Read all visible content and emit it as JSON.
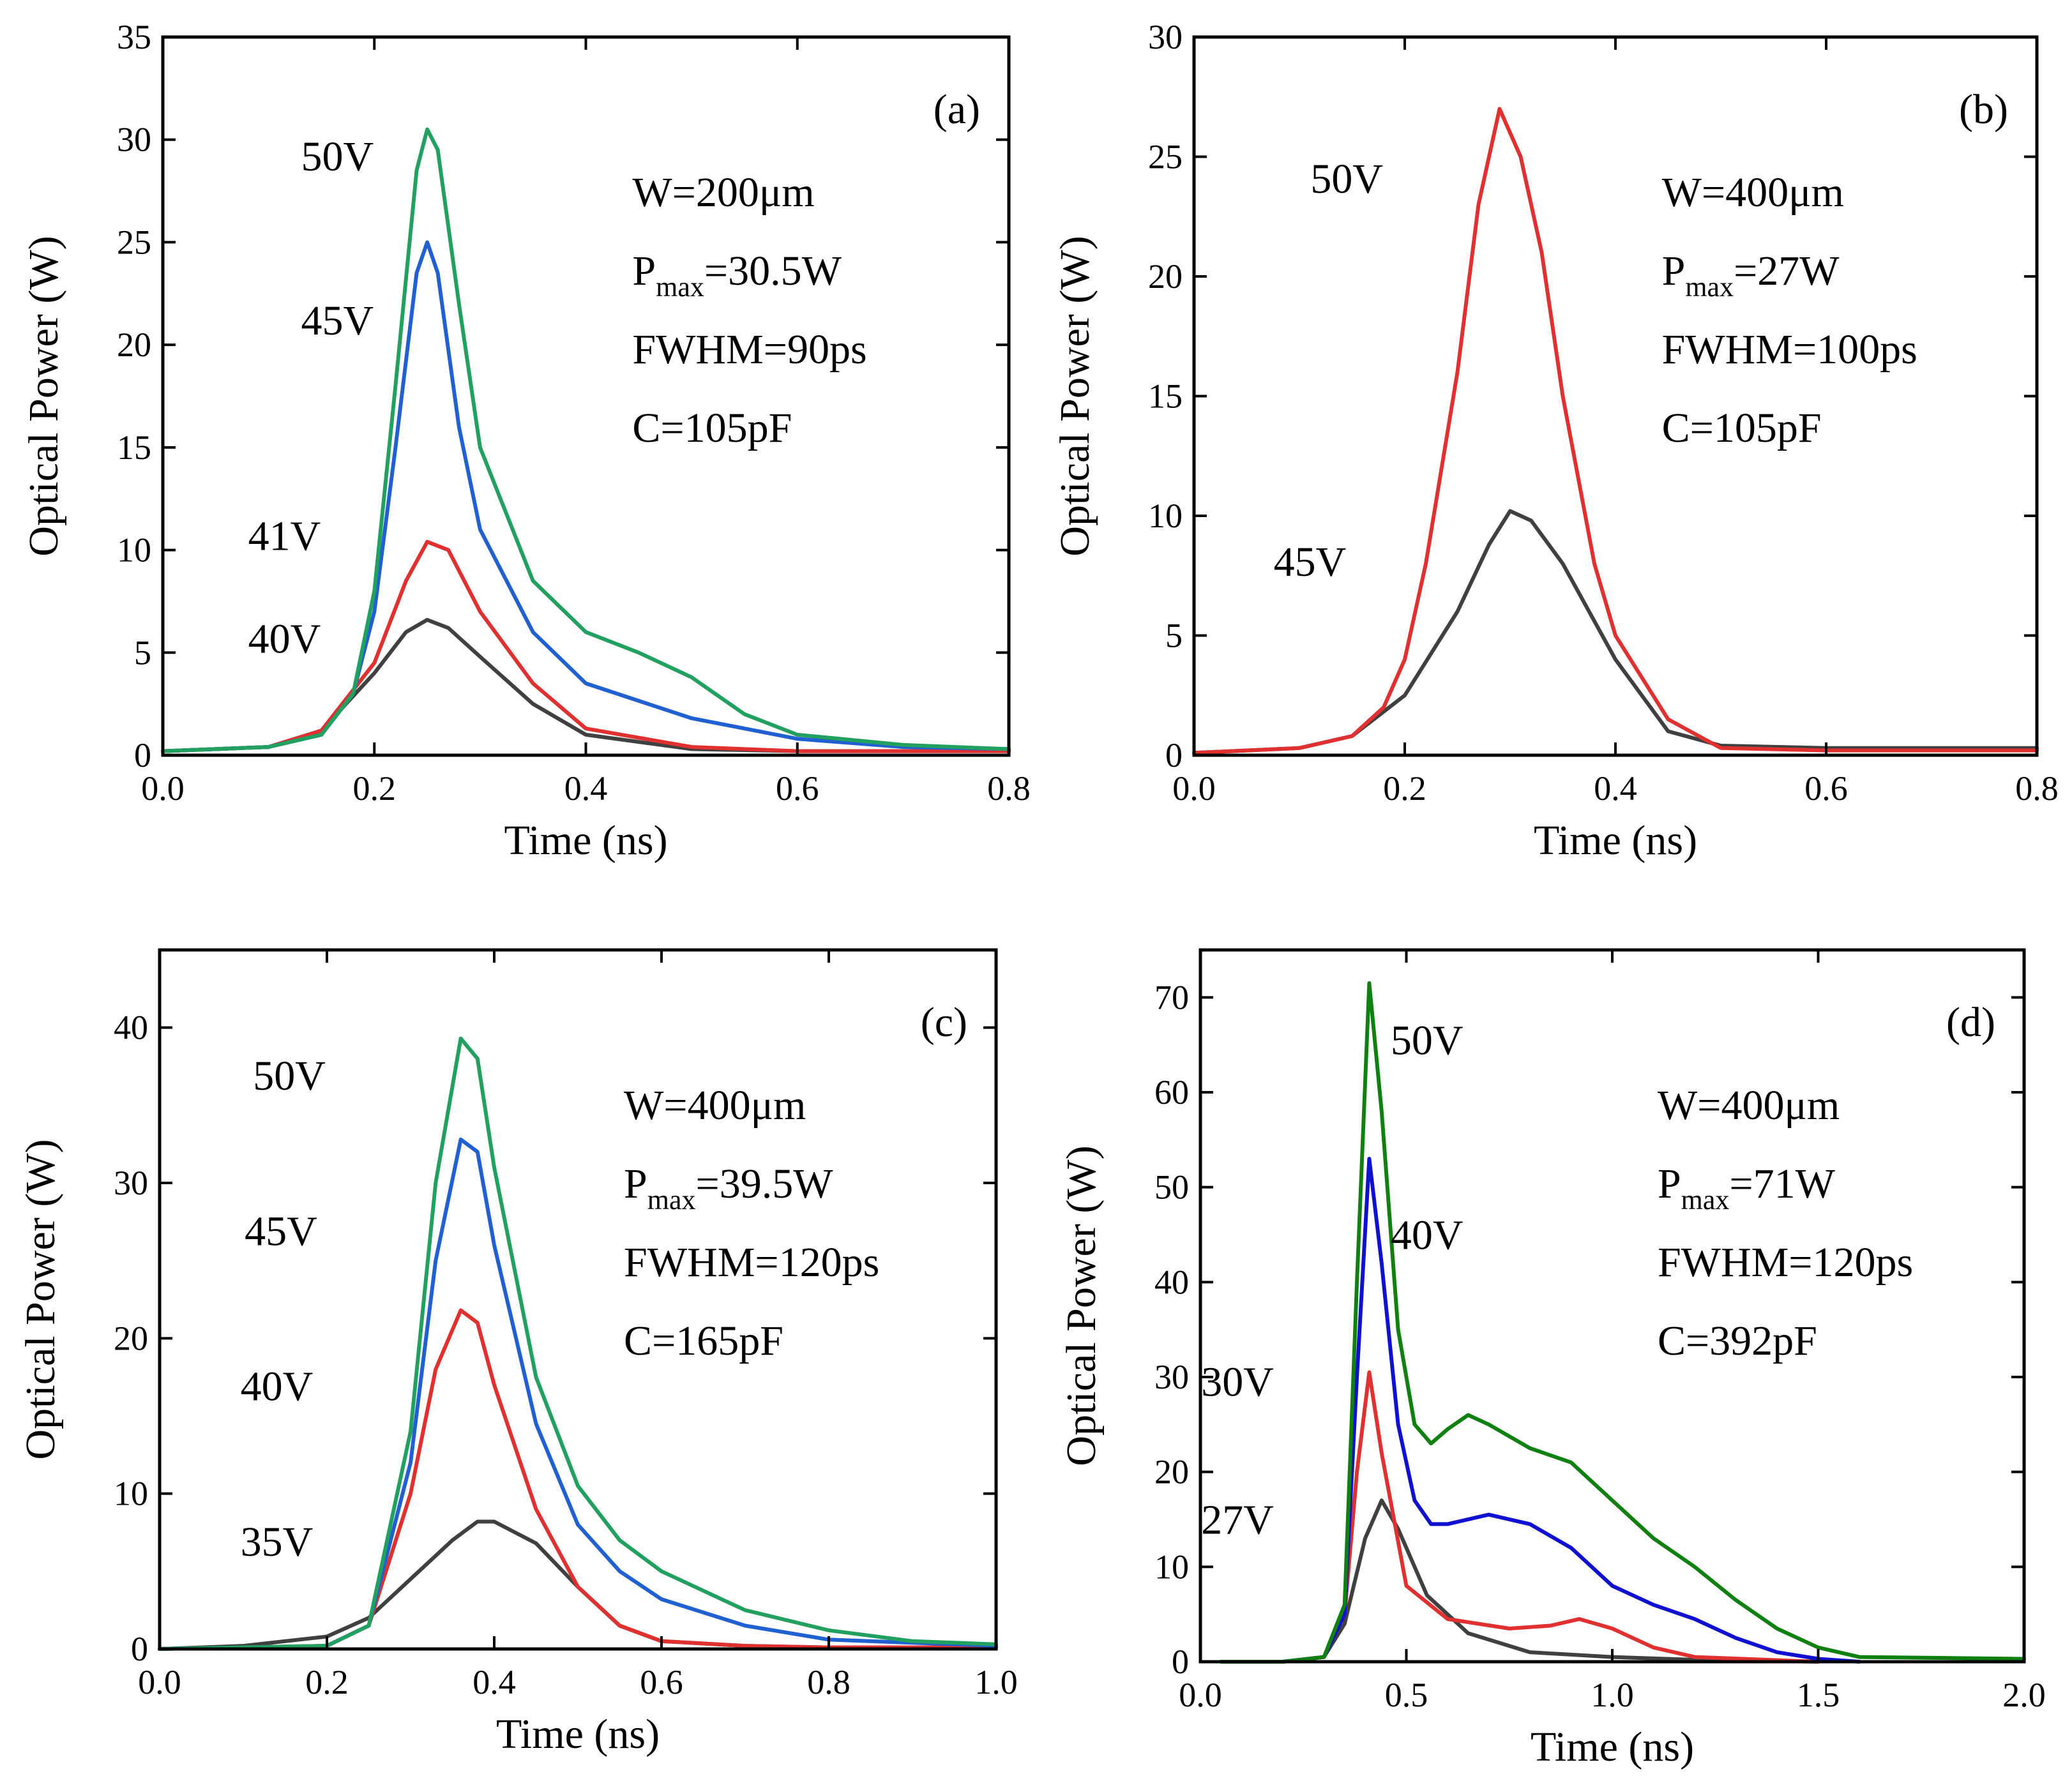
{
  "chart_data": [
    {
      "type": "line",
      "panel_label": "(a)",
      "xlabel": "Time (ns)",
      "ylabel": "Optical Power (W)",
      "xlim": [
        0,
        0.8
      ],
      "ylim": [
        0,
        35
      ],
      "xticks": [
        "0.0",
        "0.2",
        "0.4",
        "0.6",
        "0.8"
      ],
      "yticks": [
        "0",
        "5",
        "10",
        "15",
        "20",
        "25",
        "30",
        "35"
      ],
      "annotations": [
        {
          "main": "W=200μm"
        },
        {
          "prefix": "P",
          "sub": "max",
          "rest": "=30.5W"
        },
        {
          "main": "FWHM=90ps"
        },
        {
          "main": "C=105pF"
        }
      ],
      "series": [
        {
          "name": "40V",
          "color": "#404040",
          "x": [
            0,
            0.1,
            0.15,
            0.2,
            0.23,
            0.25,
            0.27,
            0.3,
            0.35,
            0.4,
            0.5,
            0.6,
            0.8
          ],
          "y": [
            0.2,
            0.4,
            1.2,
            4.0,
            6.0,
            6.6,
            6.2,
            4.8,
            2.5,
            1.0,
            0.3,
            0.2,
            0.2
          ]
        },
        {
          "name": "41V",
          "color": "#e03030",
          "x": [
            0,
            0.1,
            0.15,
            0.2,
            0.23,
            0.25,
            0.27,
            0.3,
            0.35,
            0.4,
            0.5,
            0.6,
            0.8
          ],
          "y": [
            0.2,
            0.4,
            1.2,
            4.5,
            8.5,
            10.4,
            10.0,
            7.0,
            3.5,
            1.3,
            0.4,
            0.2,
            0.2
          ]
        },
        {
          "name": "45V",
          "color": "#2060d0",
          "x": [
            0,
            0.1,
            0.15,
            0.18,
            0.2,
            0.22,
            0.24,
            0.25,
            0.26,
            0.28,
            0.3,
            0.35,
            0.4,
            0.5,
            0.6,
            0.7,
            0.8
          ],
          "y": [
            0.2,
            0.4,
            1.0,
            3.0,
            7.0,
            15.0,
            23.5,
            25.0,
            23.5,
            16.0,
            11.0,
            6.0,
            3.5,
            1.8,
            0.8,
            0.4,
            0.3
          ]
        },
        {
          "name": "50V",
          "color": "#22a060",
          "x": [
            0,
            0.1,
            0.15,
            0.18,
            0.2,
            0.22,
            0.24,
            0.25,
            0.26,
            0.28,
            0.3,
            0.35,
            0.4,
            0.45,
            0.5,
            0.55,
            0.6,
            0.7,
            0.8
          ],
          "y": [
            0.2,
            0.4,
            1.0,
            3.0,
            8.0,
            18.0,
            28.5,
            30.5,
            29.5,
            22.0,
            15.0,
            8.5,
            6.0,
            5.0,
            3.8,
            2.0,
            1.0,
            0.5,
            0.3
          ]
        }
      ],
      "curve_labels": [
        {
          "text": "50V",
          "x": 0.165,
          "y": 28.5
        },
        {
          "text": "45V",
          "x": 0.165,
          "y": 20.5
        },
        {
          "text": "41V",
          "x": 0.115,
          "y": 10.0
        },
        {
          "text": "40V",
          "x": 0.115,
          "y": 5.0
        }
      ]
    },
    {
      "type": "line",
      "panel_label": "(b)",
      "xlabel": "Time (ns)",
      "ylabel": "Optical Power (W)",
      "xlim": [
        0,
        0.8
      ],
      "ylim": [
        0,
        30
      ],
      "xticks": [
        "0.0",
        "0.2",
        "0.4",
        "0.6",
        "0.8"
      ],
      "yticks": [
        "0",
        "5",
        "10",
        "15",
        "20",
        "25",
        "30"
      ],
      "annotations": [
        {
          "main": "W=400μm"
        },
        {
          "prefix": "P",
          "sub": "max",
          "rest": "=27W"
        },
        {
          "main": "FWHM=100ps"
        },
        {
          "main": "C=105pF"
        }
      ],
      "series": [
        {
          "name": "45V",
          "color": "#404040",
          "x": [
            0,
            0.1,
            0.15,
            0.2,
            0.25,
            0.28,
            0.3,
            0.32,
            0.35,
            0.4,
            0.45,
            0.5,
            0.6,
            0.8
          ],
          "y": [
            0.1,
            0.3,
            0.8,
            2.5,
            6.0,
            8.8,
            10.2,
            9.8,
            8.0,
            4.0,
            1.0,
            0.4,
            0.3,
            0.3
          ]
        },
        {
          "name": "50V",
          "color": "#e03030",
          "x": [
            0,
            0.1,
            0.15,
            0.18,
            0.2,
            0.22,
            0.25,
            0.27,
            0.29,
            0.31,
            0.33,
            0.35,
            0.38,
            0.4,
            0.45,
            0.5,
            0.6,
            0.8
          ],
          "y": [
            0.1,
            0.3,
            0.8,
            2.0,
            4.0,
            8.0,
            16.0,
            23.0,
            27.0,
            25.0,
            21.0,
            15.0,
            8.0,
            5.0,
            1.5,
            0.3,
            0.2,
            0.2
          ]
        }
      ],
      "curve_labels": [
        {
          "text": "50V",
          "x": 0.145,
          "y": 23.5
        },
        {
          "text": "45V",
          "x": 0.11,
          "y": 7.5
        }
      ]
    },
    {
      "type": "line",
      "panel_label": "(c)",
      "xlabel": "Time (ns)",
      "ylabel": "Optical Power (W)",
      "xlim": [
        0,
        1.0
      ],
      "ylim": [
        0,
        45
      ],
      "xticks": [
        "0.0",
        "0.2",
        "0.4",
        "0.6",
        "0.8",
        "1.0"
      ],
      "yticks": [
        "0",
        "10",
        "20",
        "30",
        "40"
      ],
      "annotations": [
        {
          "main": "W=400μm"
        },
        {
          "prefix": "P",
          "sub": "max",
          "rest": "=39.5W"
        },
        {
          "main": "FWHM=120ps"
        },
        {
          "main": "C=165pF"
        }
      ],
      "series": [
        {
          "name": "35V",
          "color": "#404040",
          "x": [
            0,
            0.1,
            0.2,
            0.25,
            0.3,
            0.35,
            0.38,
            0.4,
            0.45,
            0.5,
            0.55,
            0.6,
            0.7,
            0.8,
            1.0
          ],
          "y": [
            0,
            0.2,
            0.8,
            2.0,
            4.5,
            7.0,
            8.2,
            8.2,
            6.8,
            4.0,
            1.5,
            0.5,
            0.2,
            0.1,
            0.1
          ]
        },
        {
          "name": "40V",
          "color": "#e03030",
          "x": [
            0,
            0.2,
            0.25,
            0.3,
            0.33,
            0.36,
            0.38,
            0.4,
            0.45,
            0.5,
            0.55,
            0.6,
            0.7,
            0.8,
            1.0
          ],
          "y": [
            0,
            0.2,
            1.5,
            10.0,
            18.0,
            21.8,
            21.0,
            17.0,
            9.0,
            4.0,
            1.5,
            0.5,
            0.2,
            0.1,
            0.1
          ]
        },
        {
          "name": "45V",
          "color": "#2060d0",
          "x": [
            0,
            0.2,
            0.25,
            0.3,
            0.33,
            0.36,
            0.38,
            0.4,
            0.45,
            0.5,
            0.55,
            0.6,
            0.7,
            0.8,
            1.0
          ],
          "y": [
            0,
            0.2,
            1.5,
            12.0,
            25.0,
            32.8,
            32.0,
            26.0,
            14.5,
            8.0,
            5.0,
            3.2,
            1.5,
            0.6,
            0.2
          ]
        },
        {
          "name": "50V",
          "color": "#22a060",
          "x": [
            0,
            0.2,
            0.25,
            0.3,
            0.33,
            0.36,
            0.38,
            0.4,
            0.45,
            0.5,
            0.55,
            0.6,
            0.7,
            0.8,
            0.9,
            1.0
          ],
          "y": [
            0,
            0.2,
            1.5,
            14.0,
            30.0,
            39.3,
            38.0,
            31.0,
            17.5,
            10.5,
            7.0,
            5.0,
            2.5,
            1.2,
            0.5,
            0.3
          ]
        }
      ],
      "curve_labels": [
        {
          "text": "50V",
          "x": 0.155,
          "y": 36.0
        },
        {
          "text": "45V",
          "x": 0.145,
          "y": 26.0
        },
        {
          "text": "40V",
          "x": 0.14,
          "y": 16.0
        },
        {
          "text": "35V",
          "x": 0.14,
          "y": 6.0
        }
      ]
    },
    {
      "type": "line",
      "panel_label": "(d)",
      "xlabel": "Time (ns)",
      "ylabel": "Optical Power (W)",
      "xlim": [
        0,
        2.0
      ],
      "ylim": [
        0,
        75
      ],
      "xticks": [
        "0.0",
        "0.5",
        "1.0",
        "1.5",
        "2.0"
      ],
      "yticks": [
        "0",
        "10",
        "20",
        "30",
        "40",
        "50",
        "60",
        "70"
      ],
      "annotations": [
        {
          "main": "W=400μm"
        },
        {
          "prefix": "P",
          "sub": "max",
          "rest": "=71W"
        },
        {
          "main": "FWHM=120ps"
        },
        {
          "main": "C=392pF"
        }
      ],
      "series": [
        {
          "name": "27V",
          "color": "#404040",
          "x": [
            0.05,
            0.2,
            0.3,
            0.35,
            0.4,
            0.44,
            0.48,
            0.55,
            0.65,
            0.8,
            1.0,
            1.2,
            1.5
          ],
          "y": [
            0,
            0,
            0.5,
            4.0,
            13.0,
            17.0,
            14.0,
            7.0,
            3.0,
            1.0,
            0.5,
            0.2,
            0
          ]
        },
        {
          "name": "30V",
          "color": "#e03030",
          "x": [
            0.05,
            0.2,
            0.3,
            0.35,
            0.38,
            0.41,
            0.44,
            0.5,
            0.6,
            0.75,
            0.85,
            0.92,
            1.0,
            1.1,
            1.2,
            1.5
          ],
          "y": [
            0,
            0,
            0.5,
            5.0,
            20.0,
            30.5,
            22.0,
            8.0,
            4.5,
            3.5,
            3.8,
            4.5,
            3.5,
            1.5,
            0.5,
            0
          ]
        },
        {
          "name": "40V",
          "color": "#1010d0",
          "x": [
            0.05,
            0.2,
            0.3,
            0.35,
            0.38,
            0.41,
            0.44,
            0.48,
            0.52,
            0.56,
            0.6,
            0.7,
            0.8,
            0.9,
            1.0,
            1.1,
            1.2,
            1.3,
            1.4,
            1.5,
            1.6
          ],
          "y": [
            0,
            0,
            0.5,
            5.0,
            30.0,
            53.0,
            42.0,
            25.0,
            17.0,
            14.5,
            14.5,
            15.5,
            14.5,
            12.0,
            8.0,
            6.0,
            4.5,
            2.5,
            1.0,
            0.3,
            0
          ]
        },
        {
          "name": "50V",
          "color": "#108010",
          "x": [
            0.05,
            0.2,
            0.3,
            0.35,
            0.38,
            0.41,
            0.44,
            0.48,
            0.52,
            0.56,
            0.6,
            0.65,
            0.7,
            0.8,
            0.9,
            1.0,
            1.1,
            1.2,
            1.3,
            1.4,
            1.5,
            1.6,
            2.0
          ],
          "y": [
            0,
            0,
            0.5,
            6.0,
            40.0,
            71.5,
            58.0,
            35.0,
            25.0,
            23.0,
            24.5,
            26.0,
            25.0,
            22.5,
            21.0,
            17.0,
            13.0,
            10.0,
            6.5,
            3.5,
            1.5,
            0.5,
            0.3
          ]
        }
      ],
      "curve_labels": [
        {
          "text": "50V",
          "x": 0.55,
          "y": 64.0
        },
        {
          "text": "40V",
          "x": 0.55,
          "y": 43.5
        },
        {
          "text": "30V",
          "x": 0.09,
          "y": 28.0
        },
        {
          "text": "27V",
          "x": 0.09,
          "y": 13.5
        }
      ]
    }
  ]
}
